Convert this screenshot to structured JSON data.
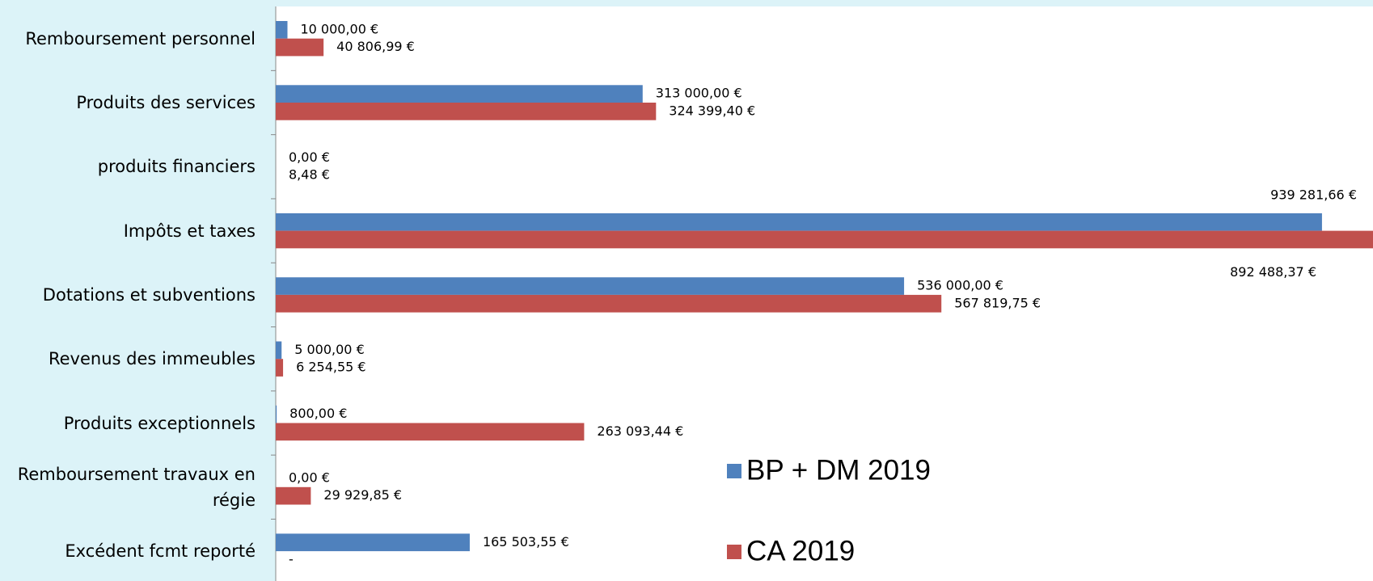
{
  "chart_data": {
    "type": "barh",
    "categories": [
      "Remboursement personnel",
      "Produits des services",
      "produits financiers",
      "Impôts et taxes",
      "Dotations et subventions",
      "Revenus des immeubles",
      "Produits exceptionnels",
      "Remboursement travaux en régie",
      "Excédent fcmt reporté"
    ],
    "series": [
      {
        "name": "BP + DM 2019",
        "color": "#4f81bd",
        "values": [
          10000,
          313000,
          0,
          892488.37,
          536000,
          5000,
          800,
          0,
          165503.55
        ],
        "value_labels": [
          "10 000,00 €",
          "313 000,00 €",
          "0,00 €",
          "892 488,37 €",
          "536 000,00 €",
          "5 000,00 €",
          "800,00 €",
          "0,00 €",
          "165 503,55 €"
        ]
      },
      {
        "name": "CA 2019",
        "color": "#c0504d",
        "values": [
          40806.99,
          324399.4,
          8.48,
          939281.66,
          567819.75,
          6254.55,
          263093.44,
          29929.85,
          0
        ],
        "value_labels": [
          "40 806,99 €",
          "324 399,40 €",
          "8,48 €",
          "939 281,66 €",
          "567 819,75 €",
          "6 254,55 €",
          "263 093,44 €",
          "29 929,85 €",
          "-"
        ]
      }
    ],
    "xlim": [
      0,
      936000
    ],
    "legend": "bottom-right"
  }
}
